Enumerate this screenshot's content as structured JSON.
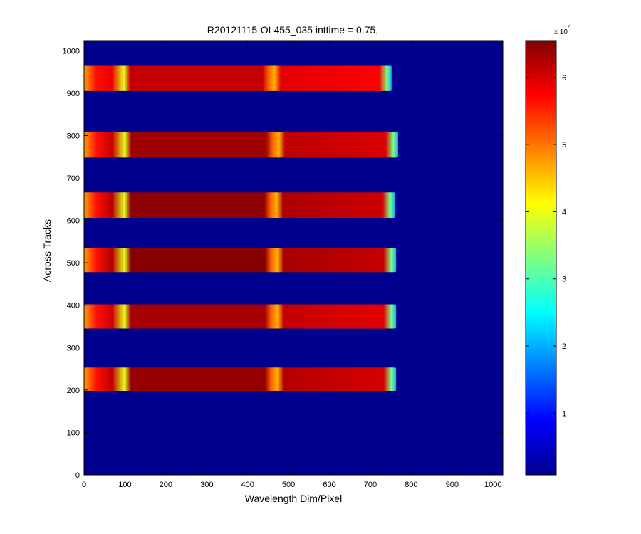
{
  "chart_data": {
    "type": "heatmap",
    "title": "R20121115-OL455_035 inttime = 0.75,",
    "xlabel": "Wavelength Dim/Pixel",
    "ylabel": "Across Tracks",
    "xlim": [
      0,
      1024
    ],
    "ylim": [
      0,
      1024
    ],
    "x_ticks": [
      0,
      100,
      200,
      300,
      400,
      500,
      600,
      700,
      800,
      900,
      1000
    ],
    "y_ticks": [
      0,
      100,
      200,
      300,
      400,
      500,
      600,
      700,
      800,
      900,
      1000
    ],
    "colorbar": {
      "range": [
        800,
        65500
      ],
      "ticks": [
        1,
        2,
        3,
        4,
        5,
        6
      ],
      "exponent_label": "x 10",
      "exponent": "4",
      "colormap": "jet"
    },
    "background_value": 0,
    "stripes": [
      {
        "y_bottom": 198,
        "y_top": 253,
        "x_end": 763,
        "value": 64000
      },
      {
        "y_bottom": 345,
        "y_top": 402,
        "x_end": 763,
        "value": 63000
      },
      {
        "y_bottom": 478,
        "y_top": 535,
        "x_end": 763,
        "value": 65000
      },
      {
        "y_bottom": 606,
        "y_top": 666,
        "x_end": 760,
        "value": 64500
      },
      {
        "y_bottom": 748,
        "y_top": 808,
        "x_end": 768,
        "value": 63500
      },
      {
        "y_bottom": 905,
        "y_top": 966,
        "x_end": 752,
        "value": 61000
      }
    ]
  }
}
